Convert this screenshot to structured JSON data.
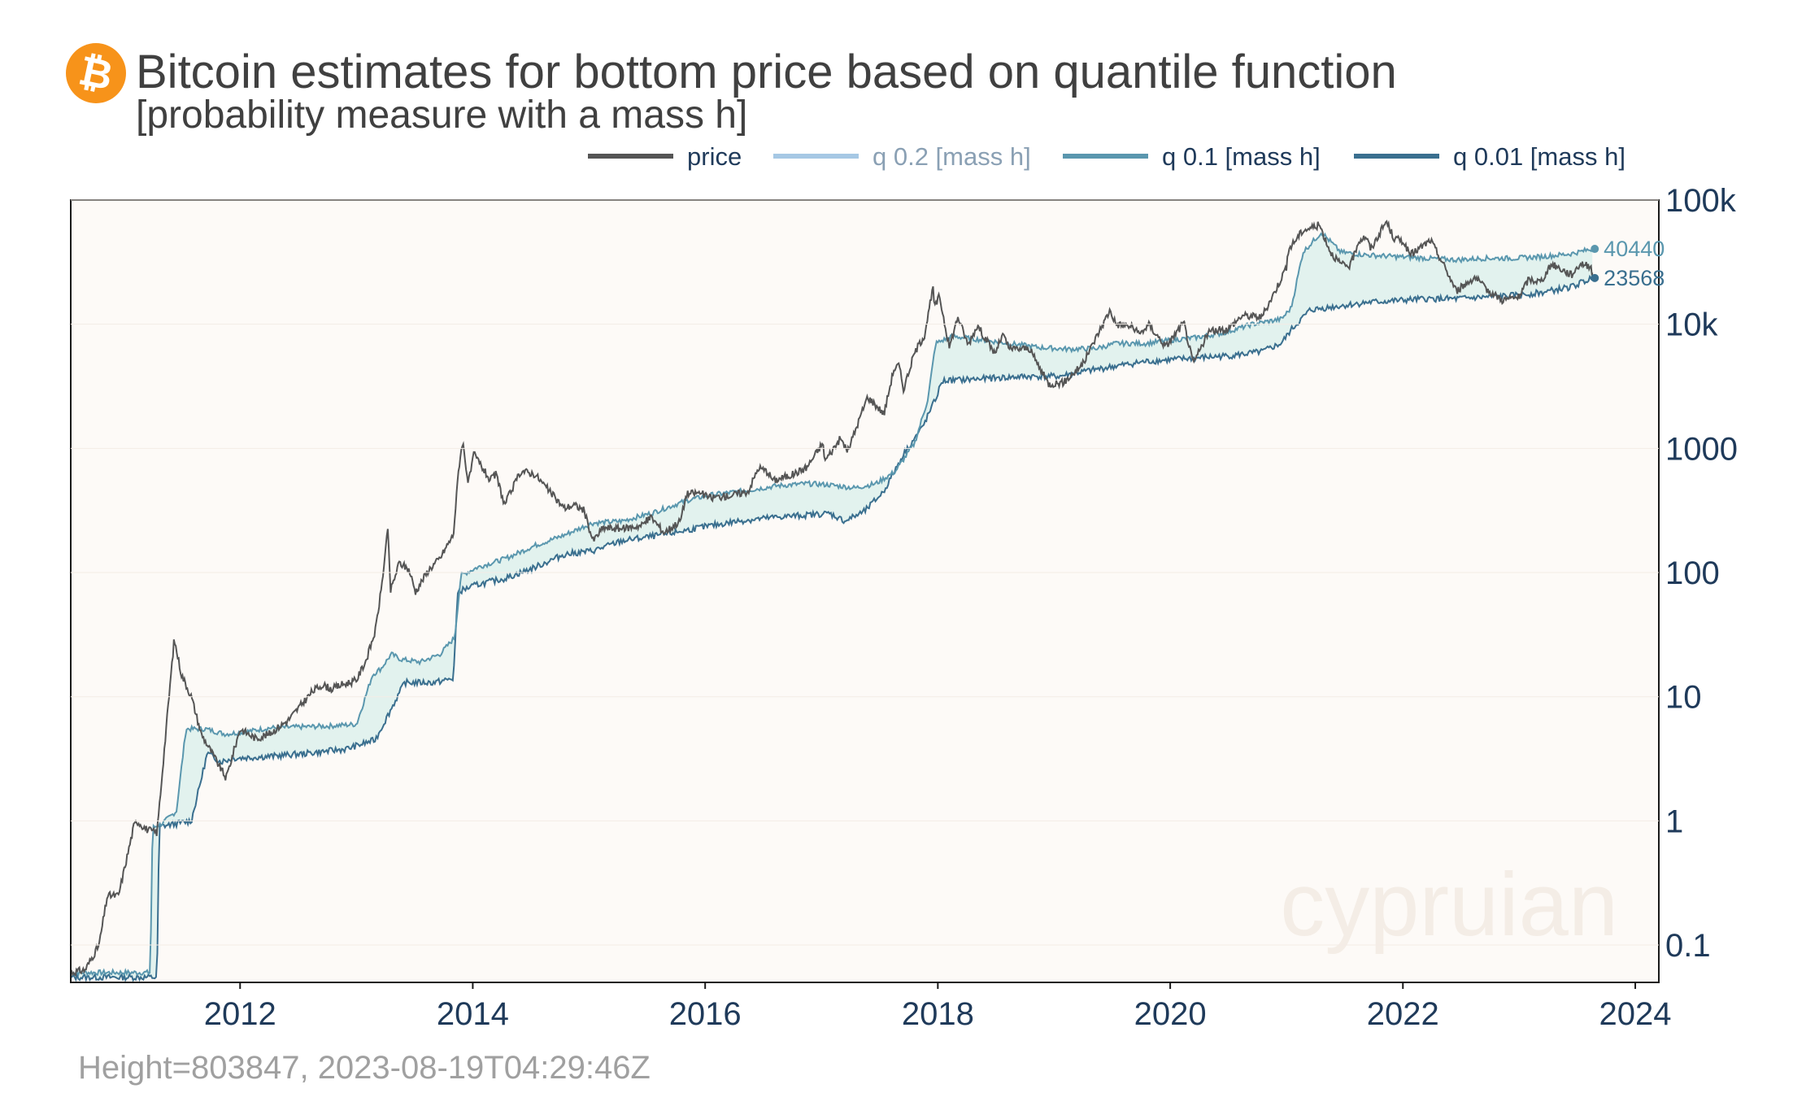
{
  "header": {
    "title": "Bitcoin estimates for bottom price based on quantile function",
    "subtitle": "[probability measure with a mass h]"
  },
  "footer": {
    "status": "Height=803847,  2023-08-19T04:29:46Z"
  },
  "watermark": "cypruian",
  "colors": {
    "price": "#555555",
    "q02": "#a6c8e4",
    "q01": "#5a97ae",
    "q001": "#3a6f8f",
    "band_fill": "#dff1ec",
    "plot_bg": "#fdfaf7",
    "logo": "#f7931a"
  },
  "chart_data": {
    "type": "line",
    "y_scale": "log",
    "ylim": [
      0.05,
      100000
    ],
    "xlim": [
      "2010-07-18",
      "2024-03-15"
    ],
    "x_ticks": [
      "2012",
      "2014",
      "2016",
      "2018",
      "2020",
      "2022",
      "2024"
    ],
    "y_ticks": [
      {
        "value": 0.1,
        "label": "0.1"
      },
      {
        "value": 1,
        "label": "1"
      },
      {
        "value": 10,
        "label": "10"
      },
      {
        "value": 100,
        "label": "100"
      },
      {
        "value": 1000,
        "label": "1000"
      },
      {
        "value": 10000,
        "label": "10k"
      },
      {
        "value": 100000,
        "label": "100k"
      }
    ],
    "grid": false,
    "legend_position": "top-right",
    "legend": [
      {
        "key": "price",
        "label": "price",
        "muted": false
      },
      {
        "key": "q02",
        "label": "q 0.2 [mass h]",
        "muted": true
      },
      {
        "key": "q01",
        "label": "q 0.1 [mass h]",
        "muted": false
      },
      {
        "key": "q001",
        "label": "q 0.01 [mass h]",
        "muted": false
      }
    ],
    "end_labels": [
      {
        "series": "q01",
        "value": 40440,
        "label": "40440"
      },
      {
        "series": "q001",
        "value": 23568,
        "label": "23568"
      }
    ],
    "series": [
      {
        "key": "price",
        "x": [
          "2010-07-18",
          "2010-09-01",
          "2010-10-15",
          "2010-11-10",
          "2010-12-15",
          "2011-02-01",
          "2011-02-10",
          "2011-03-15",
          "2011-04-15",
          "2011-05-15",
          "2011-06-08",
          "2011-07-01",
          "2011-08-01",
          "2011-09-01",
          "2011-10-20",
          "2011-11-18",
          "2012-01-01",
          "2012-02-20",
          "2012-04-01",
          "2012-06-01",
          "2012-08-15",
          "2012-09-15",
          "2012-10-15",
          "2012-11-15",
          "2012-12-31",
          "2013-02-01",
          "2013-03-01",
          "2013-03-20",
          "2013-04-10",
          "2013-04-17",
          "2013-05-15",
          "2013-06-15",
          "2013-07-05",
          "2013-08-15",
          "2013-09-20",
          "2013-10-15",
          "2013-11-01",
          "2013-11-18",
          "2013-11-30",
          "2013-12-18",
          "2014-01-05",
          "2014-02-25",
          "2014-03-15",
          "2014-04-11",
          "2014-05-01",
          "2014-06-02",
          "2014-07-15",
          "2014-08-15",
          "2014-09-20",
          "2014-10-15",
          "2014-11-15",
          "2014-12-15",
          "2015-01-14",
          "2015-02-15",
          "2015-04-15",
          "2015-06-15",
          "2015-07-15",
          "2015-08-25",
          "2015-10-15",
          "2015-11-04",
          "2015-12-15",
          "2016-01-15",
          "2016-03-15",
          "2016-05-15",
          "2016-06-17",
          "2016-07-15",
          "2016-08-02",
          "2016-10-01",
          "2016-11-15",
          "2017-01-04",
          "2017-01-12",
          "2017-03-01",
          "2017-03-24",
          "2017-05-25",
          "2017-06-15",
          "2017-07-16",
          "2017-08-15",
          "2017-09-01",
          "2017-09-15",
          "2017-10-20",
          "2017-11-20",
          "2017-12-17",
          "2017-12-22",
          "2018-01-06",
          "2018-02-06",
          "2018-03-05",
          "2018-04-06",
          "2018-05-05",
          "2018-06-29",
          "2018-07-24",
          "2018-08-15",
          "2018-10-15",
          "2018-11-20",
          "2018-12-15",
          "2019-02-01",
          "2019-04-02",
          "2019-05-15",
          "2019-06-26",
          "2019-07-15",
          "2019-09-01",
          "2019-09-25",
          "2019-10-26",
          "2019-12-18",
          "2020-02-13",
          "2020-03-13",
          "2020-05-01",
          "2020-07-01",
          "2020-08-15",
          "2020-10-15",
          "2020-11-30",
          "2020-12-31",
          "2021-01-08",
          "2021-02-21",
          "2021-04-14",
          "2021-05-19",
          "2021-06-22",
          "2021-07-20",
          "2021-08-15",
          "2021-09-07",
          "2021-09-22",
          "2021-11-10",
          "2021-12-04",
          "2022-01-01",
          "2022-01-24",
          "2022-03-29",
          "2022-05-12",
          "2022-06-18",
          "2022-08-15",
          "2022-09-15",
          "2022-11-09",
          "2022-12-31",
          "2023-01-31",
          "2023-03-10",
          "2023-04-14",
          "2023-06-15",
          "2023-07-13",
          "2023-08-10",
          "2023-08-19"
        ],
        "y": [
          0.06,
          0.063,
          0.1,
          0.25,
          0.25,
          0.9,
          1.0,
          0.85,
          0.8,
          6.0,
          29.0,
          15.0,
          10.0,
          5.0,
          3.0,
          2.2,
          5.5,
          4.6,
          5.0,
          6.5,
          11.0,
          12.5,
          11.5,
          12.5,
          13.5,
          20.0,
          34.0,
          75.0,
          230.0,
          70.0,
          120.0,
          105.0,
          70.0,
          105.0,
          130.0,
          170.0,
          200.0,
          700.0,
          1150.0,
          520.0,
          900.0,
          550.0,
          620.0,
          350.0,
          450.0,
          660.0,
          620.0,
          500.0,
          390.0,
          330.0,
          350.0,
          320.0,
          180.0,
          230.0,
          225.0,
          240.0,
          280.0,
          210.0,
          260.0,
          430.0,
          440.0,
          400.0,
          415.0,
          450.0,
          700.0,
          650.0,
          550.0,
          615.0,
          700.0,
          1100.0,
          800.0,
          1200.0,
          950.0,
          2600.0,
          2300.0,
          1900.0,
          4300.0,
          4700.0,
          3000.0,
          5900.0,
          8200.0,
          19500.0,
          13500.0,
          17000.0,
          6500.0,
          11500.0,
          6800.0,
          9800.0,
          5800.0,
          8200.0,
          6300.0,
          6400.0,
          4300.0,
          3300.0,
          3400.0,
          4800.0,
          8000.0,
          13000.0,
          10000.0,
          9600.0,
          8300.0,
          9900.0,
          6600.0,
          10300.0,
          4800.0,
          8700.0,
          9200.0,
          11800.0,
          11400.0,
          19500.0,
          29000.0,
          40500.0,
          57000.0,
          63000.0,
          38000.0,
          30000.0,
          29500.0,
          47000.0,
          51000.0,
          40000.0,
          67500.0,
          49000.0,
          47000.0,
          36000.0,
          47500.0,
          29000.0,
          18500.0,
          24000.0,
          19500.0,
          15700.0,
          16500.0,
          23000.0,
          22000.0,
          30500.0,
          25000.0,
          31000.0,
          29500.0,
          26000
        ]
      },
      {
        "key": "q01",
        "x": [
          "2010-07-18",
          "2011-03-25",
          "2011-04-01",
          "2011-05-01",
          "2011-06-15",
          "2011-07-15",
          "2011-09-15",
          "2011-11-15",
          "2012-01-15",
          "2012-04-01",
          "2012-07-01",
          "2012-10-01",
          "2013-01-01",
          "2013-02-20",
          "2013-03-20",
          "2013-04-20",
          "2013-05-20",
          "2013-07-20",
          "2013-09-20",
          "2013-11-05",
          "2013-11-25",
          "2014-01-15",
          "2014-04-15",
          "2014-07-15",
          "2014-10-15",
          "2015-01-10",
          "2015-04-15",
          "2015-07-15",
          "2015-11-04",
          "2016-01-15",
          "2016-05-15",
          "2016-08-15",
          "2016-11-15",
          "2017-01-20",
          "2017-04-15",
          "2017-06-20",
          "2017-08-20",
          "2017-10-20",
          "2017-12-01",
          "2017-12-25",
          "2018-02-15",
          "2018-05-15",
          "2018-08-15",
          "2018-11-15",
          "2019-02-15",
          "2019-05-15",
          "2019-07-15",
          "2019-10-15",
          "2020-01-15",
          "2020-03-20",
          "2020-06-15",
          "2020-09-15",
          "2020-12-15",
          "2021-01-15",
          "2021-02-21",
          "2021-04-20",
          "2021-06-20",
          "2021-09-15",
          "2021-12-15",
          "2022-03-15",
          "2022-06-20",
          "2022-09-15",
          "2022-12-15",
          "2023-03-15",
          "2023-06-15",
          "2023-08-19"
        ],
        "y": [
          0.06,
          0.06,
          0.88,
          0.95,
          1.2,
          5.5,
          5.5,
          5.0,
          5.2,
          5.6,
          5.7,
          5.8,
          6.0,
          15.0,
          17.0,
          22.0,
          20.0,
          19.0,
          22.0,
          30.0,
          95.0,
          110.0,
          130.0,
          165.0,
          200.0,
          250.0,
          260.0,
          300.0,
          380.0,
          420.0,
          460.0,
          500.0,
          520.0,
          510.0,
          480.0,
          520.0,
          650.0,
          1100.0,
          2500.0,
          7000.0,
          8000.0,
          7500.0,
          7000.0,
          6500.0,
          6300.0,
          6400.0,
          7000.0,
          7000.0,
          7500.0,
          7800.0,
          8500.0,
          10000.0,
          11000.0,
          13500.0,
          38000.0,
          55000.0,
          38000.0,
          36000.0,
          35000.0,
          34000.0,
          33000.0,
          34000.0,
          34000.0,
          35000.0,
          37000.0,
          40440
        ]
      },
      {
        "key": "q001",
        "x": [
          "2010-07-18",
          "2011-04-15",
          "2011-04-22",
          "2011-06-15",
          "2011-08-01",
          "2011-09-20",
          "2011-11-01",
          "2011-12-15",
          "2012-04-01",
          "2012-08-01",
          "2012-12-01",
          "2013-03-01",
          "2013-06-01",
          "2013-09-01",
          "2013-11-01",
          "2013-11-15",
          "2014-01-15",
          "2014-04-15",
          "2014-07-15",
          "2014-10-15",
          "2015-01-15",
          "2015-04-15",
          "2015-08-15",
          "2015-12-15",
          "2016-04-15",
          "2016-08-15",
          "2016-11-15",
          "2017-01-25",
          "2017-03-15",
          "2017-05-15",
          "2017-07-15",
          "2017-09-15",
          "2017-11-15",
          "2017-12-25",
          "2018-01-15",
          "2018-04-15",
          "2018-07-15",
          "2018-10-15",
          "2019-01-15",
          "2019-04-15",
          "2019-07-15",
          "2019-10-15",
          "2020-01-15",
          "2020-04-15",
          "2020-07-15",
          "2020-10-15",
          "2020-12-15",
          "2021-01-15",
          "2021-03-15",
          "2021-06-15",
          "2021-09-15",
          "2021-12-15",
          "2022-03-15",
          "2022-06-15",
          "2022-09-15",
          "2022-12-15",
          "2023-03-15",
          "2023-06-15",
          "2023-08-19"
        ],
        "y": [
          0.055,
          0.055,
          0.9,
          0.95,
          1.0,
          3.5,
          3.0,
          3.2,
          3.3,
          3.5,
          3.8,
          4.5,
          13.0,
          13.0,
          14.0,
          70.0,
          80.0,
          90.0,
          110.0,
          140.0,
          150.0,
          180.0,
          200.0,
          230.0,
          260.0,
          280.0,
          290.0,
          300.0,
          260.0,
          310.0,
          450.0,
          900.0,
          1500.0,
          2500.0,
          3500.0,
          3600.0,
          3700.0,
          3800.0,
          3800.0,
          4200.0,
          4600.0,
          5000.0,
          5200.0,
          5400.0,
          5600.0,
          6000.0,
          7000.0,
          9000.0,
          13000.0,
          14000.0,
          15000.0,
          15500.0,
          16000.0,
          16000.0,
          16500.0,
          17000.0,
          18000.0,
          20000.0,
          23568
        ]
      }
    ]
  }
}
